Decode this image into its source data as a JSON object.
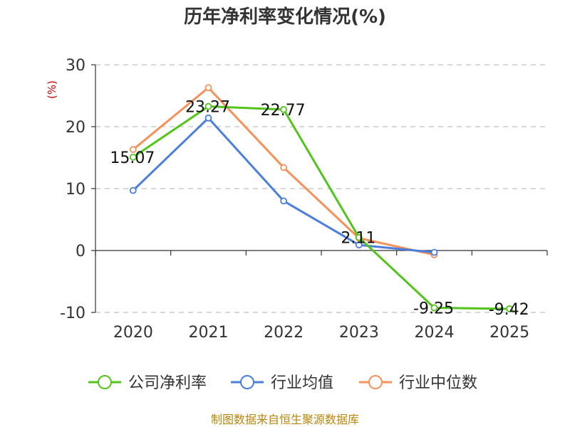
{
  "chart_data": {
    "type": "line",
    "title": "历年净利率变化情况(%)",
    "ylabel": "(%)",
    "xlabel": "",
    "categories": [
      "2020",
      "2021",
      "2022",
      "2023",
      "2024",
      "2025"
    ],
    "ylim": [
      -10,
      30
    ],
    "yticks": [
      -10,
      0,
      10,
      20,
      30
    ],
    "grid": true,
    "legend_position": "bottom",
    "series": [
      {
        "name": "公司净利率",
        "color": "#52c41a",
        "values": [
          15.07,
          23.27,
          22.77,
          2.11,
          -9.25,
          -9.42
        ],
        "labels": [
          "15.07",
          "23.27",
          "22.77",
          "2.11",
          "-9.25",
          "-9.42"
        ]
      },
      {
        "name": "行业均值",
        "color": "#4a7fdc",
        "values": [
          9.7,
          21.4,
          8.0,
          0.9,
          -0.3,
          null
        ]
      },
      {
        "name": "行业中位数",
        "color": "#f5915a",
        "values": [
          16.3,
          26.3,
          13.4,
          2.0,
          -0.7,
          null
        ]
      }
    ]
  },
  "source": "制图数据来自恒生聚源数据库"
}
